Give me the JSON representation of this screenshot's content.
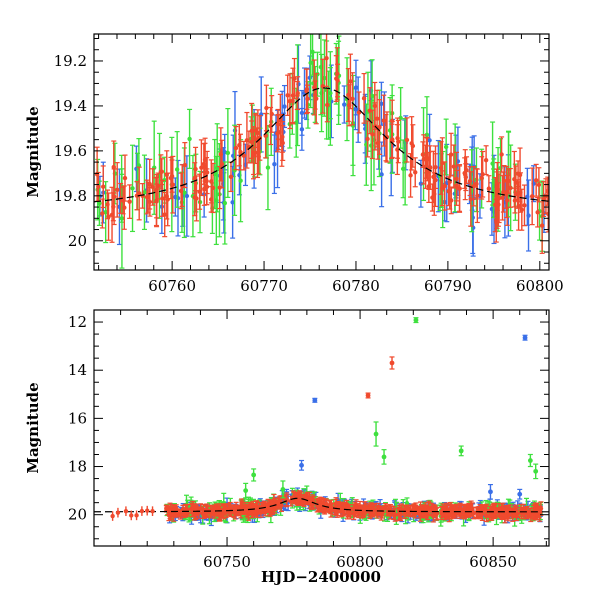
{
  "chart_data": [
    {
      "type": "scatter",
      "title": "",
      "xlabel": "",
      "ylabel": "Magnitude",
      "xlim": [
        60751.5,
        60801
      ],
      "ylim": [
        20.13,
        19.08
      ],
      "y_inverted": true,
      "grid": false,
      "legend": "none",
      "x_ticks": [
        60760,
        60770,
        60780,
        60790,
        60800
      ],
      "x_tick_labels": [
        "60760",
        "60770",
        "60780",
        "60790",
        "60800"
      ],
      "y_ticks": [
        19.2,
        19.4,
        19.6,
        19.8,
        20.0
      ],
      "y_tick_labels": [
        "19.2",
        "19.4",
        "19.6",
        "19.8",
        "20"
      ],
      "series": [
        {
          "color": "#3a6fe8",
          "n_points": 75,
          "err_typical": 0.13
        },
        {
          "color": "#3ee03e",
          "n_points": 95,
          "err_typical": 0.16
        },
        {
          "color": "#f04a2e",
          "n_points": 210,
          "err_typical": 0.09
        }
      ],
      "model_curve": {
        "color": "#000000",
        "style": "dashed",
        "baseline_mag": 19.885,
        "peak_mag": 19.32,
        "peak_hjd": 60776.5,
        "width_days": 8.5
      }
    },
    {
      "type": "scatter",
      "title": "",
      "xlabel": "HJD−2400000",
      "ylabel": "Magnitude",
      "xlim": [
        60700,
        60871
      ],
      "ylim": [
        21.3,
        11.5
      ],
      "y_inverted": true,
      "grid": false,
      "legend": "none",
      "x_ticks": [
        60750,
        60800,
        60850
      ],
      "x_tick_labels": [
        "60750",
        "60800",
        "60850"
      ],
      "y_ticks": [
        12,
        14,
        16,
        18,
        20
      ],
      "y_tick_labels": [
        "12",
        "14",
        "16",
        "18",
        "20"
      ],
      "series": [
        {
          "color": "#3a6fe8",
          "n_points": 220,
          "err_typical": 0.25
        },
        {
          "color": "#3ee03e",
          "n_points": 170,
          "err_typical": 0.3
        },
        {
          "color": "#f04a2e",
          "n_points": 480,
          "err_typical": 0.2
        }
      ],
      "outliers": [
        {
          "color": "#3ee03e",
          "x": 60821,
          "y": 11.92,
          "err": 0.1
        },
        {
          "color": "#3a6fe8",
          "x": 60862,
          "y": 12.65,
          "err": 0.1
        },
        {
          "color": "#f04a2e",
          "x": 60812,
          "y": 13.7,
          "err": 0.25
        },
        {
          "color": "#f04a2e",
          "x": 60803,
          "y": 15.05,
          "err": 0.1
        },
        {
          "color": "#3a6fe8",
          "x": 60783,
          "y": 15.25,
          "err": 0.08
        },
        {
          "color": "#3ee03e",
          "x": 60809,
          "y": 17.6,
          "err": 0.3
        },
        {
          "color": "#3ee03e",
          "x": 60806,
          "y": 16.65,
          "err": 0.5
        },
        {
          "color": "#3ee03e",
          "x": 60838,
          "y": 17.35,
          "err": 0.2
        },
        {
          "color": "#3ee03e",
          "x": 60864,
          "y": 17.75,
          "err": 0.25
        },
        {
          "color": "#3ee03e",
          "x": 60760,
          "y": 18.35,
          "err": 0.25
        },
        {
          "color": "#3a6fe8",
          "x": 60778,
          "y": 17.95,
          "err": 0.2
        },
        {
          "color": "#3ee03e",
          "x": 60866,
          "y": 18.2,
          "err": 0.3
        },
        {
          "color": "#3a6fe8",
          "x": 60849,
          "y": 19.05,
          "err": 0.3
        },
        {
          "color": "#3a6fe8",
          "x": 60860,
          "y": 19.15,
          "err": 0.2
        },
        {
          "color": "#3ee03e",
          "x": 60757,
          "y": 19.0,
          "err": 0.3
        },
        {
          "color": "#3ee03e",
          "x": 60771,
          "y": 18.95,
          "err": 0.35
        }
      ],
      "model_curve": {
        "color": "#000000",
        "style": "dashed",
        "baseline_mag": 19.885,
        "peak_mag": 19.32,
        "peak_hjd": 60776.5,
        "width_days": 8.5
      }
    }
  ]
}
